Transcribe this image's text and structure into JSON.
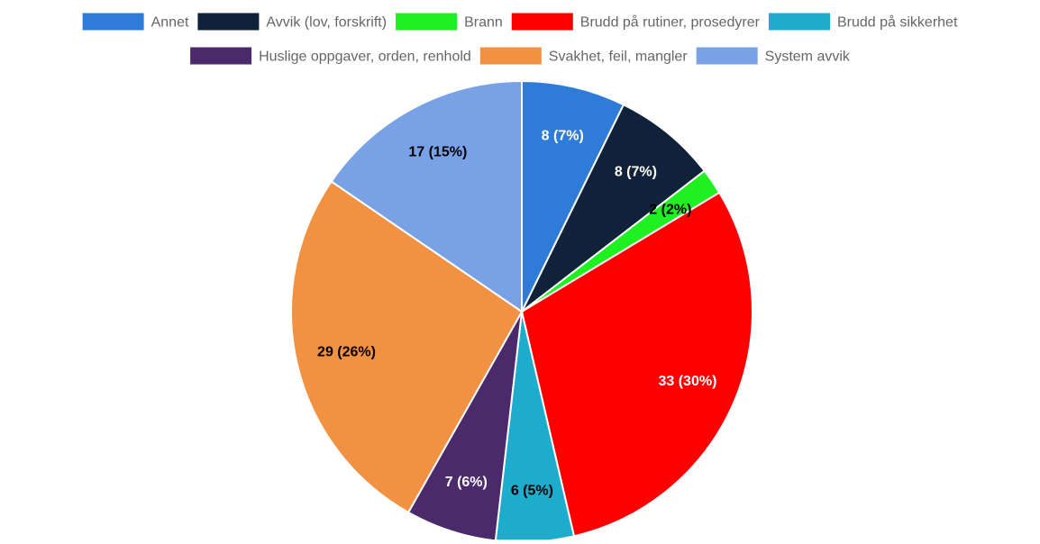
{
  "chart_data": {
    "type": "pie",
    "title": "",
    "legend_position": "top",
    "categories": [
      "Annet",
      "Avvik (lov, forskrift)",
      "Brann",
      "Brudd på rutiner, prosedyrer",
      "Brudd på sikkerhet",
      "Huslige oppgaver, orden, renhold",
      "Svakhet, feil, mangler",
      "System avvik"
    ],
    "values": [
      8,
      8,
      2,
      33,
      6,
      7,
      29,
      17
    ],
    "data_labels": [
      "8 (7%)",
      "8 (7%)",
      "2 (2%)",
      "33 (30%)",
      "6 (5%)",
      "7 (6%)",
      "29 (26%)",
      "17 (15%)"
    ],
    "colors": [
      "#2e7cd8",
      "#0f2239",
      "#1ff01f",
      "#ff0000",
      "#1eaccc",
      "#4a2a6b",
      "#f29141",
      "#78a1e6"
    ],
    "label_colors": [
      "#ffffff",
      "#ffffff",
      "#000000",
      "#ffffff",
      "#000000",
      "#ffffff",
      "#000000",
      "#000000"
    ]
  }
}
